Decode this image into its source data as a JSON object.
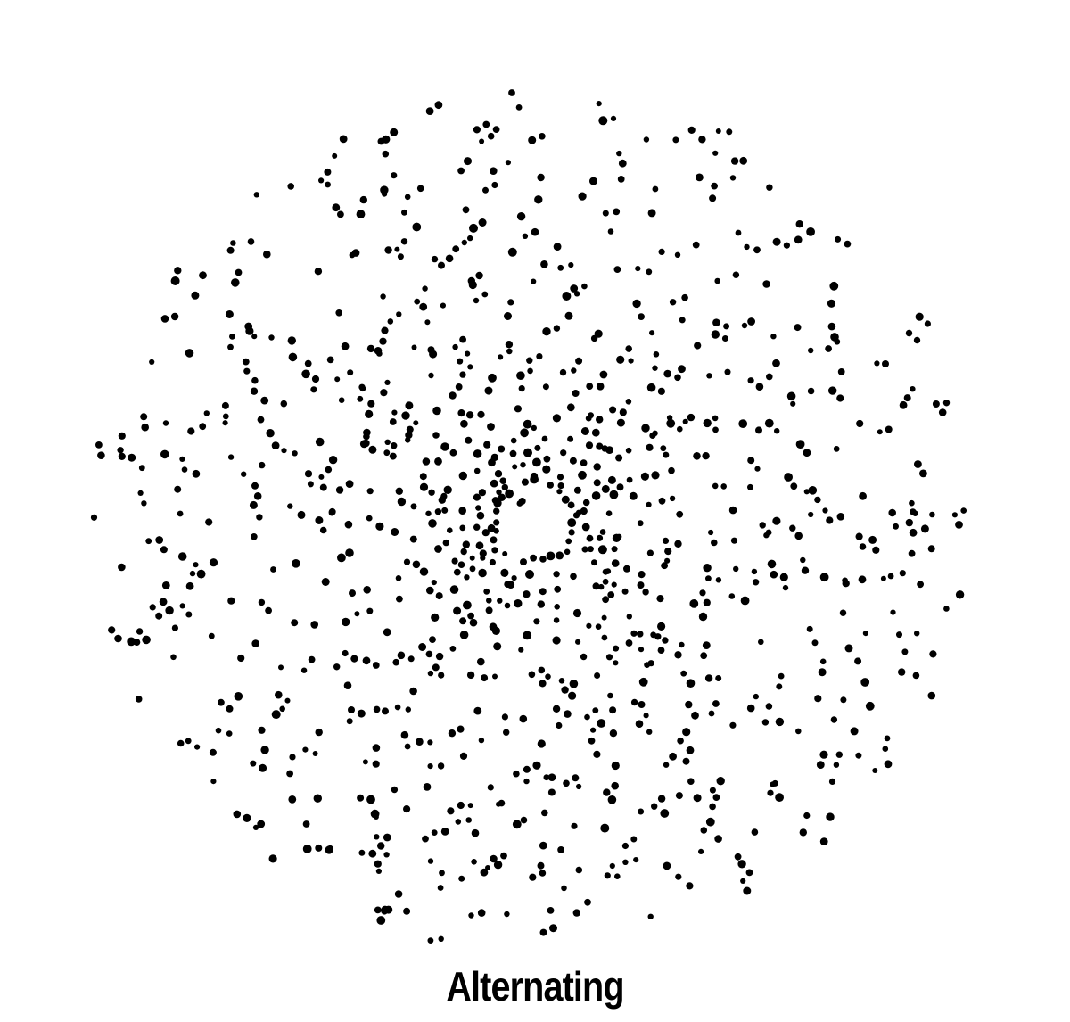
{
  "figure": {
    "caption": "Alternating",
    "background_color": "#ffffff",
    "dot_color": "#000000",
    "pattern": "dotted-spiral-disc"
  }
}
